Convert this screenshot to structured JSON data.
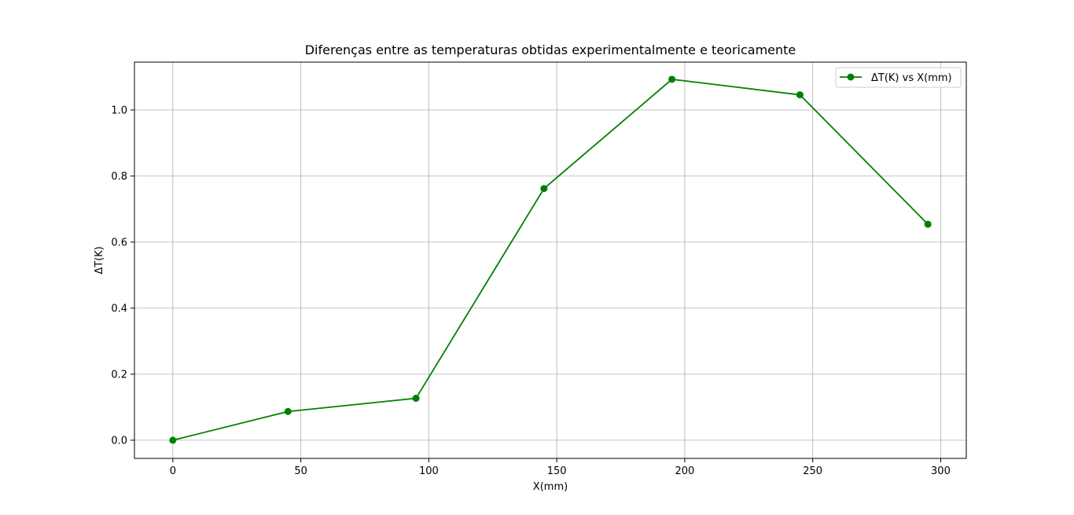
{
  "chart_data": {
    "type": "line",
    "title": "Diferenças entre as temperaturas obtidas experimentalmente e teoricamente",
    "xlabel": "X(mm)",
    "ylabel": "ΔT(K)",
    "xlim": [
      -15,
      310
    ],
    "ylim": [
      -0.055,
      1.145
    ],
    "xticks": [
      0,
      50,
      100,
      150,
      200,
      250,
      300
    ],
    "yticks": [
      0.0,
      0.2,
      0.4,
      0.6,
      0.8,
      1.0
    ],
    "xtick_labels": [
      "0",
      "50",
      "100",
      "150",
      "200",
      "250",
      "300"
    ],
    "ytick_labels": [
      "0.0",
      "0.2",
      "0.4",
      "0.6",
      "0.8",
      "1.0"
    ],
    "grid": true,
    "legend_position": "top-right",
    "series": [
      {
        "name": "ΔT(K) vs X(mm)",
        "color": "#008000",
        "marker": "circle",
        "x": [
          0,
          45,
          95,
          145,
          195,
          245,
          295
        ],
        "y": [
          0.0,
          0.087,
          0.127,
          0.762,
          1.093,
          1.046,
          0.654
        ]
      }
    ]
  }
}
